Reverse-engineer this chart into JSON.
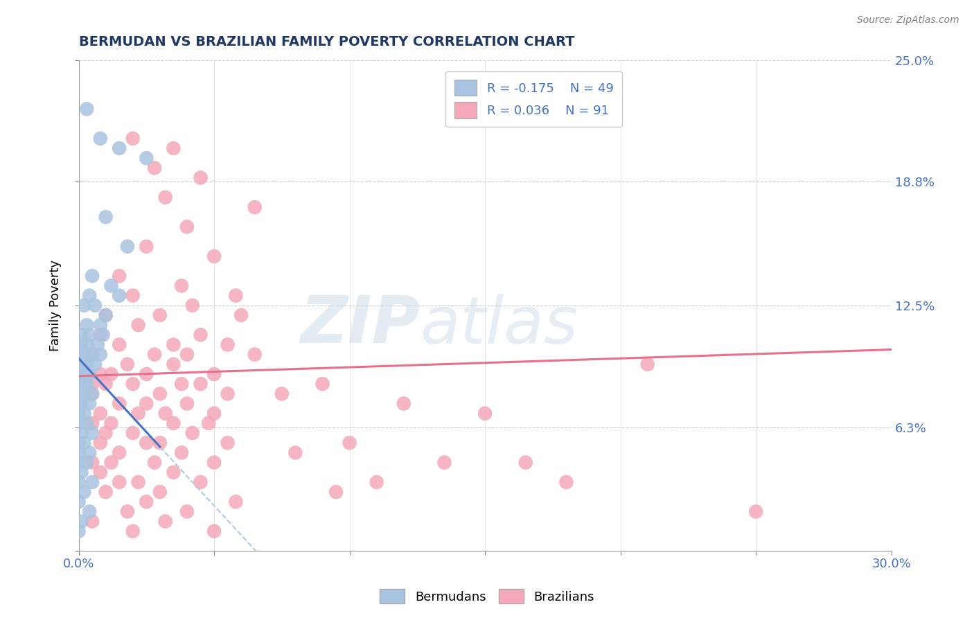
{
  "title": "BERMUDAN VS BRAZILIAN FAMILY POVERTY CORRELATION CHART",
  "source": "Source: ZipAtlas.com",
  "ylabel": "Family Poverty",
  "xlim": [
    0.0,
    30.0
  ],
  "ylim": [
    0.0,
    25.0
  ],
  "y_ticks": [
    0.0,
    6.3,
    12.5,
    18.8,
    25.0
  ],
  "y_tick_labels": [
    "",
    "6.3%",
    "12.5%",
    "18.8%",
    "25.0%"
  ],
  "bermudans_color": "#a8c4e0",
  "brazilians_color": "#f4a8b8",
  "bermudans_line_color": "#4472c4",
  "brazilians_line_color": "#e8708a",
  "dashed_line_color": "#b0c8e8",
  "label_color": "#4472c4",
  "title_color": "#1f3864",
  "watermark_zip": "ZIP",
  "watermark_atlas": "atlas",
  "bermudans_R": -0.175,
  "bermudans_intercept": 9.8,
  "brazilians_R": 0.036,
  "brazilians_intercept": 8.9,
  "bermudans_slope": -1.5,
  "brazilians_slope": 0.045,
  "blue_solid_x_end": 3.0,
  "blue_dashed_x_end": 11.5,
  "pink_x_end": 30.0,
  "bermudans_data": [
    [
      0.3,
      22.5
    ],
    [
      0.8,
      21.0
    ],
    [
      1.5,
      20.5
    ],
    [
      2.5,
      20.0
    ],
    [
      1.0,
      17.0
    ],
    [
      1.8,
      15.5
    ],
    [
      0.5,
      14.0
    ],
    [
      1.2,
      13.5
    ],
    [
      0.4,
      13.0
    ],
    [
      1.5,
      13.0
    ],
    [
      0.2,
      12.5
    ],
    [
      0.6,
      12.5
    ],
    [
      1.0,
      12.0
    ],
    [
      0.3,
      11.5
    ],
    [
      0.8,
      11.5
    ],
    [
      0.1,
      11.0
    ],
    [
      0.4,
      11.0
    ],
    [
      0.9,
      11.0
    ],
    [
      0.1,
      10.5
    ],
    [
      0.3,
      10.5
    ],
    [
      0.7,
      10.5
    ],
    [
      0.0,
      10.0
    ],
    [
      0.2,
      10.0
    ],
    [
      0.5,
      10.0
    ],
    [
      0.8,
      10.0
    ],
    [
      0.0,
      9.5
    ],
    [
      0.1,
      9.5
    ],
    [
      0.3,
      9.5
    ],
    [
      0.6,
      9.5
    ],
    [
      0.0,
      9.0
    ],
    [
      0.1,
      9.0
    ],
    [
      0.2,
      9.0
    ],
    [
      0.4,
      9.0
    ],
    [
      0.0,
      8.5
    ],
    [
      0.1,
      8.5
    ],
    [
      0.3,
      8.5
    ],
    [
      0.0,
      8.0
    ],
    [
      0.2,
      8.0
    ],
    [
      0.5,
      8.0
    ],
    [
      0.0,
      7.5
    ],
    [
      0.1,
      7.5
    ],
    [
      0.4,
      7.5
    ],
    [
      0.0,
      7.0
    ],
    [
      0.2,
      7.0
    ],
    [
      0.0,
      6.5
    ],
    [
      0.3,
      6.5
    ],
    [
      0.1,
      6.0
    ],
    [
      0.5,
      6.0
    ],
    [
      0.0,
      5.5
    ],
    [
      0.2,
      5.5
    ],
    [
      0.0,
      5.0
    ],
    [
      0.4,
      5.0
    ],
    [
      0.0,
      4.5
    ],
    [
      0.3,
      4.5
    ],
    [
      0.1,
      4.0
    ],
    [
      0.0,
      3.5
    ],
    [
      0.5,
      3.5
    ],
    [
      0.2,
      3.0
    ],
    [
      0.0,
      2.5
    ],
    [
      0.4,
      2.0
    ],
    [
      0.1,
      1.5
    ],
    [
      0.0,
      1.0
    ]
  ],
  "brazilians_data": [
    [
      2.0,
      21.0
    ],
    [
      3.5,
      20.5
    ],
    [
      2.8,
      19.5
    ],
    [
      4.5,
      19.0
    ],
    [
      3.2,
      18.0
    ],
    [
      6.5,
      17.5
    ],
    [
      4.0,
      16.5
    ],
    [
      2.5,
      15.5
    ],
    [
      5.0,
      15.0
    ],
    [
      1.5,
      14.0
    ],
    [
      3.8,
      13.5
    ],
    [
      5.8,
      13.0
    ],
    [
      2.0,
      13.0
    ],
    [
      4.2,
      12.5
    ],
    [
      1.0,
      12.0
    ],
    [
      3.0,
      12.0
    ],
    [
      6.0,
      12.0
    ],
    [
      2.2,
      11.5
    ],
    [
      4.5,
      11.0
    ],
    [
      0.8,
      11.0
    ],
    [
      3.5,
      10.5
    ],
    [
      5.5,
      10.5
    ],
    [
      1.5,
      10.5
    ],
    [
      4.0,
      10.0
    ],
    [
      0.5,
      10.0
    ],
    [
      2.8,
      10.0
    ],
    [
      6.5,
      10.0
    ],
    [
      1.8,
      9.5
    ],
    [
      3.5,
      9.5
    ],
    [
      0.8,
      9.0
    ],
    [
      2.5,
      9.0
    ],
    [
      5.0,
      9.0
    ],
    [
      1.2,
      9.0
    ],
    [
      3.8,
      8.5
    ],
    [
      0.5,
      8.5
    ],
    [
      2.0,
      8.5
    ],
    [
      4.5,
      8.5
    ],
    [
      1.0,
      8.5
    ],
    [
      3.0,
      8.0
    ],
    [
      5.5,
      8.0
    ],
    [
      0.5,
      8.0
    ],
    [
      2.5,
      7.5
    ],
    [
      4.0,
      7.5
    ],
    [
      1.5,
      7.5
    ],
    [
      3.2,
      7.0
    ],
    [
      0.8,
      7.0
    ],
    [
      2.2,
      7.0
    ],
    [
      5.0,
      7.0
    ],
    [
      1.2,
      6.5
    ],
    [
      3.5,
      6.5
    ],
    [
      4.8,
      6.5
    ],
    [
      0.5,
      6.5
    ],
    [
      2.0,
      6.0
    ],
    [
      4.2,
      6.0
    ],
    [
      1.0,
      6.0
    ],
    [
      3.0,
      5.5
    ],
    [
      0.8,
      5.5
    ],
    [
      2.5,
      5.5
    ],
    [
      5.5,
      5.5
    ],
    [
      1.5,
      5.0
    ],
    [
      3.8,
      5.0
    ],
    [
      0.5,
      4.5
    ],
    [
      2.8,
      4.5
    ],
    [
      5.0,
      4.5
    ],
    [
      1.2,
      4.5
    ],
    [
      3.5,
      4.0
    ],
    [
      0.8,
      4.0
    ],
    [
      2.2,
      3.5
    ],
    [
      4.5,
      3.5
    ],
    [
      1.5,
      3.5
    ],
    [
      3.0,
      3.0
    ],
    [
      1.0,
      3.0
    ],
    [
      2.5,
      2.5
    ],
    [
      5.8,
      2.5
    ],
    [
      1.8,
      2.0
    ],
    [
      4.0,
      2.0
    ],
    [
      0.5,
      1.5
    ],
    [
      3.2,
      1.5
    ],
    [
      2.0,
      1.0
    ],
    [
      5.0,
      1.0
    ],
    [
      9.5,
      3.0
    ],
    [
      11.0,
      3.5
    ],
    [
      13.5,
      4.5
    ],
    [
      16.5,
      4.5
    ],
    [
      8.0,
      5.0
    ],
    [
      10.0,
      5.5
    ],
    [
      12.0,
      7.5
    ],
    [
      15.0,
      7.0
    ],
    [
      7.5,
      8.0
    ],
    [
      9.0,
      8.5
    ],
    [
      18.0,
      3.5
    ],
    [
      25.0,
      2.0
    ],
    [
      21.0,
      9.5
    ]
  ]
}
